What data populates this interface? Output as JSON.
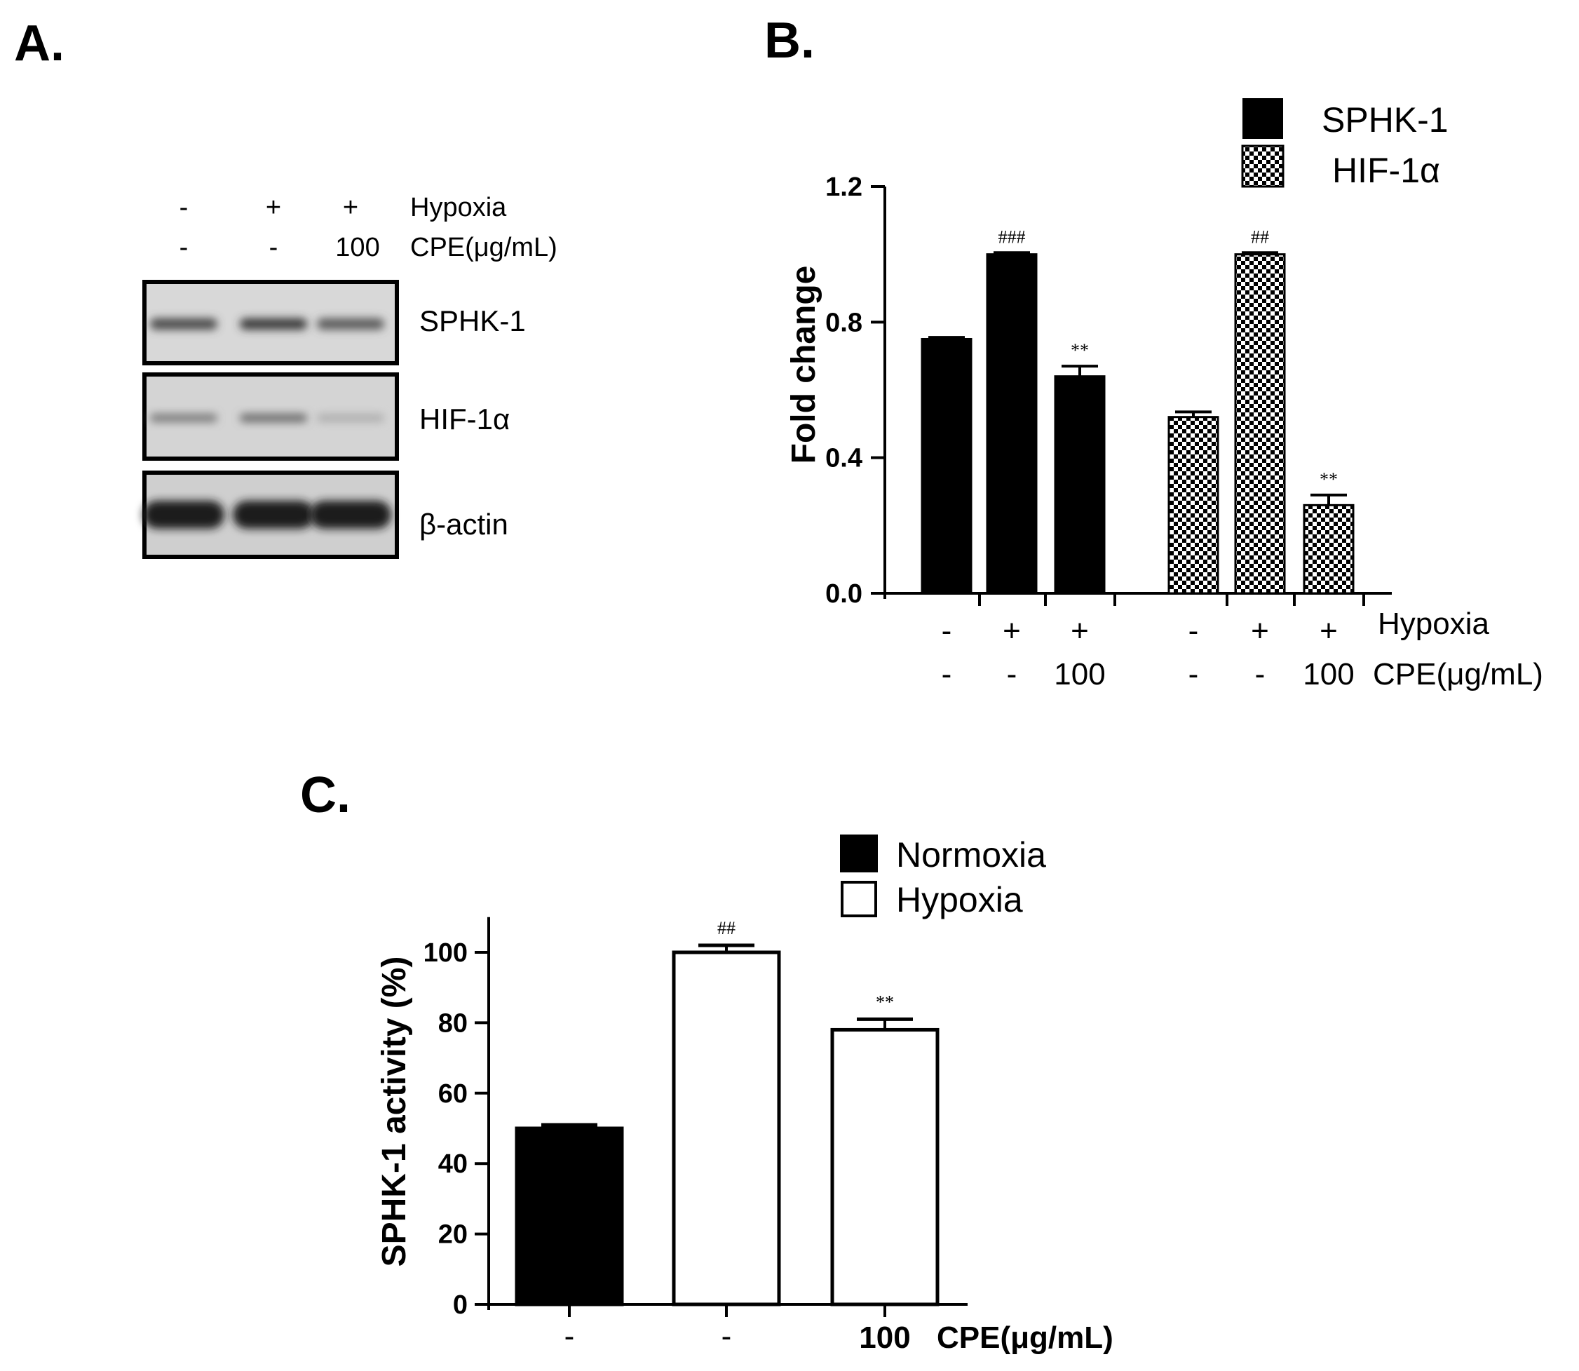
{
  "panels": {
    "a": "A.",
    "b": "B.",
    "c": "C."
  },
  "blot": {
    "hypoxia_row": [
      "-",
      "+",
      "+"
    ],
    "cpe_row": [
      "-",
      "-",
      "100"
    ],
    "hypoxia_label": "Hypoxia",
    "cpe_label": "CPE(μg/mL)",
    "bands": [
      {
        "label": "SPHK-1",
        "intensities": [
          0.75,
          0.85,
          0.65
        ]
      },
      {
        "label": "HIF-1α",
        "intensities": [
          0.45,
          0.55,
          0.15
        ]
      },
      {
        "label": "β-actin",
        "intensities": [
          1.0,
          1.0,
          1.0
        ]
      }
    ]
  },
  "chart_data": [
    {
      "type": "bar",
      "panel": "B.",
      "ylabel": "Fold change",
      "ylim": [
        0,
        1.2
      ],
      "yticks": [
        "0.0",
        "0.4",
        "0.8",
        "1.2"
      ],
      "legend": [
        "SPHK-1",
        "HIF-1α"
      ],
      "legend_position": "top-right",
      "series": [
        {
          "name": "SPHK-1",
          "fill": "solid",
          "values": [
            0.75,
            1.0,
            0.64
          ],
          "errors": [
            0.005,
            0.005,
            0.03
          ],
          "sig": [
            "",
            "###",
            "**"
          ]
        },
        {
          "name": "HIF-1α",
          "fill": "checkered",
          "values": [
            0.52,
            1.0,
            0.26
          ],
          "errors": [
            0.015,
            0.005,
            0.03
          ],
          "sig": [
            "",
            "##",
            "**"
          ]
        }
      ],
      "hypoxia_row": [
        "-",
        "+",
        "+",
        "-",
        "+",
        "+"
      ],
      "cpe_row": [
        "-",
        "-",
        "100",
        "-",
        "-",
        "100"
      ],
      "hypoxia_label": "Hypoxia",
      "cpe_label": "CPE(μg/mL)"
    },
    {
      "type": "bar",
      "panel": "C.",
      "ylabel": "SPHK-1 activity (%)",
      "ylim": [
        0,
        110
      ],
      "yticks": [
        "0",
        "20",
        "40",
        "60",
        "80",
        "100"
      ],
      "legend": [
        "Normoxia",
        "Hypoxia"
      ],
      "legend_position": "top",
      "bars": [
        {
          "condition": "Normoxia",
          "value": 50,
          "error": 1,
          "sig": ""
        },
        {
          "condition": "Hypoxia",
          "value": 100,
          "error": 2,
          "sig": "##"
        },
        {
          "condition": "Hypoxia",
          "value": 78,
          "error": 3,
          "sig": "**"
        }
      ],
      "cpe_row": [
        "-",
        "-",
        "100"
      ],
      "cpe_label": "CPE(μg/mL)"
    }
  ]
}
